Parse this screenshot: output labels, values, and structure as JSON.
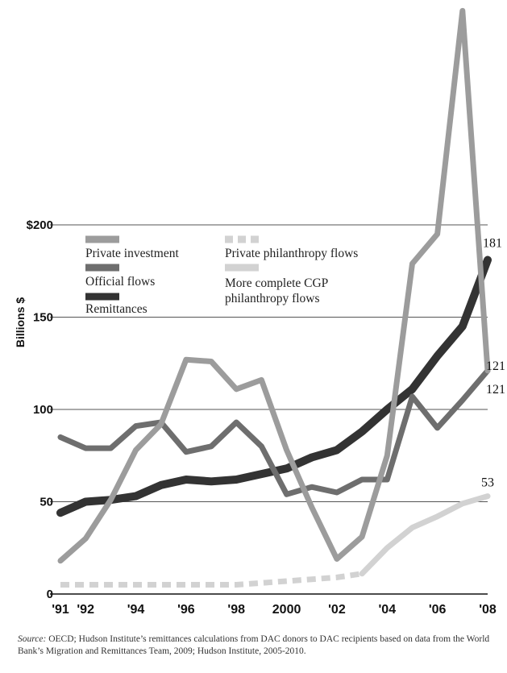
{
  "chart_data": {
    "type": "line",
    "ylabel": "Billions $",
    "y_ticks": [
      "0",
      "50",
      "100",
      "150",
      "$200"
    ],
    "y_tick_values": [
      0,
      50,
      100,
      150,
      200
    ],
    "x_ticks": [
      "'91",
      "'92",
      "'94",
      "'96",
      "'98",
      "2000",
      "'02",
      "'04",
      "'06",
      "'08"
    ],
    "x_tick_values": [
      1991,
      1992,
      1994,
      1996,
      1998,
      2000,
      2002,
      2004,
      2006,
      2008
    ],
    "ylim": [
      0,
      317
    ],
    "xlim": [
      1991,
      2008
    ],
    "x": [
      1991,
      1992,
      1993,
      1994,
      1995,
      1996,
      1997,
      1998,
      1999,
      2000,
      2001,
      2002,
      2003,
      2004,
      2005,
      2006,
      2007,
      2008
    ],
    "grid": "horizontal",
    "legend_position": "top-left",
    "series": [
      {
        "name": "Private investment",
        "color": "#9c9c9c",
        "style": "solid",
        "values": [
          18,
          30,
          51,
          78,
          92,
          127,
          126,
          111,
          116,
          78,
          47,
          19,
          31,
          75,
          179,
          195,
          316,
          121
        ]
      },
      {
        "name": "Official flows",
        "color": "#6e6e6e",
        "style": "solid",
        "values": [
          85,
          79,
          79,
          91,
          93,
          77,
          80,
          93,
          80,
          54,
          58,
          55,
          62,
          62,
          107,
          90,
          105,
          121
        ]
      },
      {
        "name": "Remittances",
        "color": "#333333",
        "style": "solid",
        "values": [
          44,
          50,
          51,
          53,
          59,
          62,
          61,
          62,
          65,
          68,
          74,
          78,
          88,
          100,
          111,
          129,
          145,
          181
        ]
      },
      {
        "name": "Private philanthropy flows",
        "color": "#d2d2d2",
        "style": "dashed",
        "values": [
          5,
          5,
          5,
          5,
          5,
          5,
          5,
          5,
          6,
          7,
          8,
          9,
          11,
          null,
          null,
          null,
          null,
          null
        ]
      },
      {
        "name": "More complete CGP philanthropy flows",
        "color": "#d2d2d2",
        "style": "solid",
        "values": [
          null,
          null,
          null,
          null,
          null,
          null,
          null,
          null,
          null,
          null,
          null,
          null,
          11,
          25,
          36,
          42,
          49,
          53
        ]
      }
    ],
    "legend": [
      {
        "label": "Private investment"
      },
      {
        "label": "Official flows"
      },
      {
        "label": "Remittances"
      },
      {
        "label": "Private philanthropy flows"
      },
      {
        "label_lines": [
          "More complete CGP",
          "philanthropy flows"
        ]
      }
    ],
    "end_labels": [
      {
        "text": "181",
        "series": 2
      },
      {
        "text": "121",
        "series": 0
      },
      {
        "text": "121",
        "series": 1
      },
      {
        "text": "53",
        "series": 4
      }
    ]
  },
  "source": {
    "label": "Source:",
    "text": "OECD; Hudson Institute’s remittances calculations from DAC donors to DAC recipients based on data from the World Bank’s Migration and Remittances Team, 2009; Hudson Institute, 2005-2010."
  }
}
